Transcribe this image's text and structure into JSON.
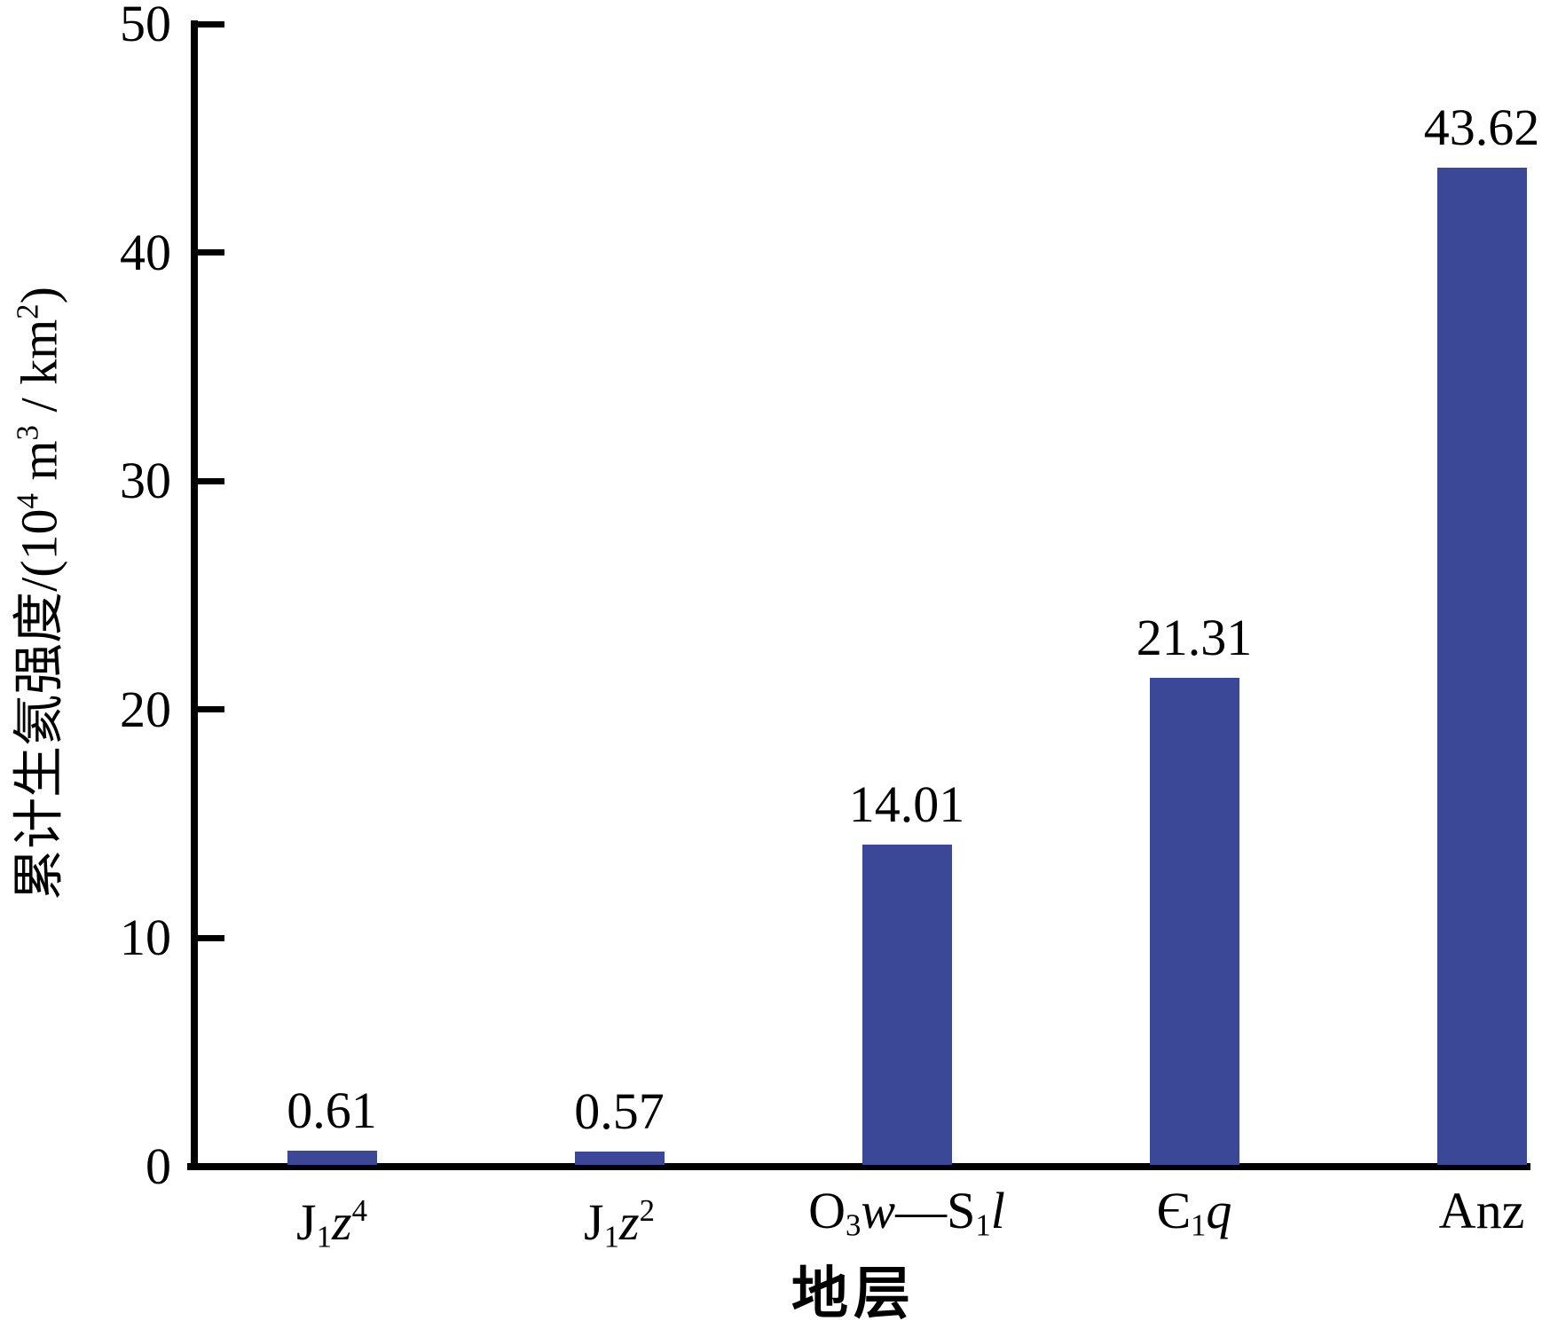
{
  "chart_data": {
    "type": "bar",
    "title": "",
    "xlabel": "地层",
    "ylabel": "累计生氦强度/(10⁴ m³/km²)",
    "ylabel_tokens": [
      {
        "t": "累计生氦强度/(10"
      },
      {
        "t": "4",
        "s": "sup"
      },
      {
        "t": " m"
      },
      {
        "t": "3",
        "s": "sup"
      },
      {
        "t": " / km"
      },
      {
        "t": "2",
        "s": "sup"
      },
      {
        "t": ")"
      }
    ],
    "categories": [
      "J₁z⁴",
      "J₁z²",
      "O₃w—S₁l",
      "Є₁q",
      "Anz"
    ],
    "categories_tokens": [
      [
        {
          "t": "J"
        },
        {
          "t": "1",
          "s": "sub"
        },
        {
          "t": "z",
          "s": "i"
        },
        {
          "t": "4",
          "s": "sup"
        }
      ],
      [
        {
          "t": "J"
        },
        {
          "t": "1",
          "s": "sub"
        },
        {
          "t": "z",
          "s": "i"
        },
        {
          "t": "2",
          "s": "sup"
        }
      ],
      [
        {
          "t": "O"
        },
        {
          "t": "3",
          "s": "sub"
        },
        {
          "t": "w",
          "s": "i"
        },
        {
          "t": "—"
        },
        {
          "t": "S"
        },
        {
          "t": "1",
          "s": "sub"
        },
        {
          "t": "l",
          "s": "i"
        }
      ],
      [
        {
          "t": "Є"
        },
        {
          "t": "1",
          "s": "sub"
        },
        {
          "t": "q",
          "s": "i"
        }
      ],
      [
        {
          "t": "Anz"
        }
      ]
    ],
    "values": [
      0.61,
      0.57,
      14.01,
      21.31,
      43.62
    ],
    "value_labels": [
      "0.61",
      "0.57",
      "14.01",
      "21.31",
      "43.62"
    ],
    "ylim": [
      0,
      50
    ],
    "yticks": [
      0,
      10,
      20,
      30,
      40,
      50
    ],
    "grid": false,
    "legend": "none",
    "bar_color": "#3B4898",
    "axis_color": "#000000",
    "text_color": "#000000"
  }
}
